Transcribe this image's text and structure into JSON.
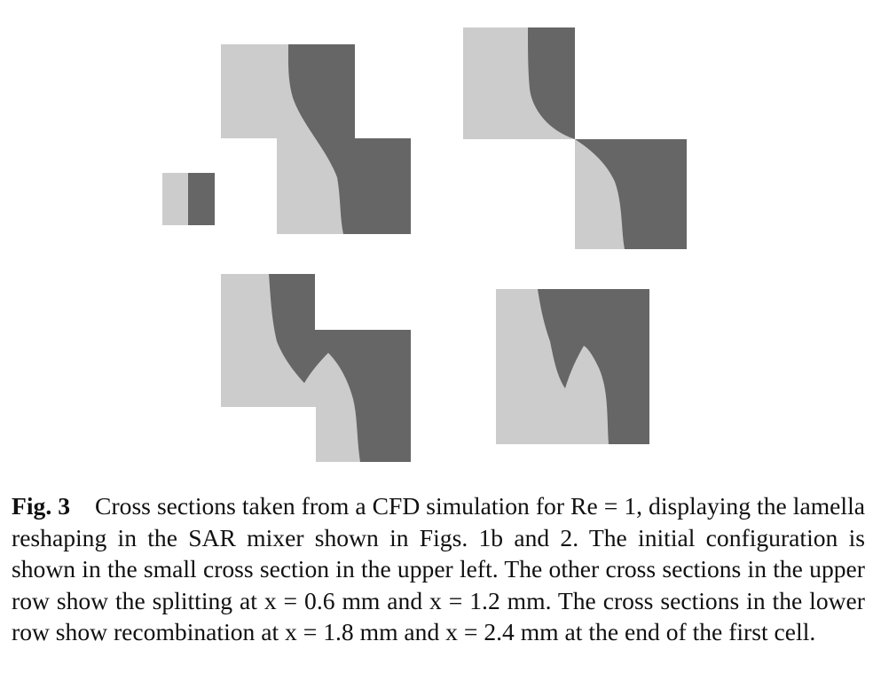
{
  "figure": {
    "colors": {
      "fluid_a": "#cccccc",
      "fluid_b": "#666666",
      "background": "#ffffff"
    },
    "panels": [
      {
        "id": "initial",
        "description_ref": "small cross section in the upper left"
      },
      {
        "id": "split-x-0.6"
      },
      {
        "id": "split-x-1.2"
      },
      {
        "id": "recombine-x-1.8"
      },
      {
        "id": "recombine-x-2.4"
      }
    ]
  },
  "caption": {
    "label": "Fig. 3",
    "text": "Cross sections taken from a CFD simulation for Re = 1, displaying the lamella reshaping in the SAR mixer shown in Figs. 1b and 2. The initial configuration is shown in the small cross section in the upper left. The other cross sections in the upper row show the splitting at x = 0.6 mm and x = 1.2 mm. The cross sections in the lower row show recombination at x = 1.8 mm and x = 2.4 mm at the end of the first cell."
  }
}
